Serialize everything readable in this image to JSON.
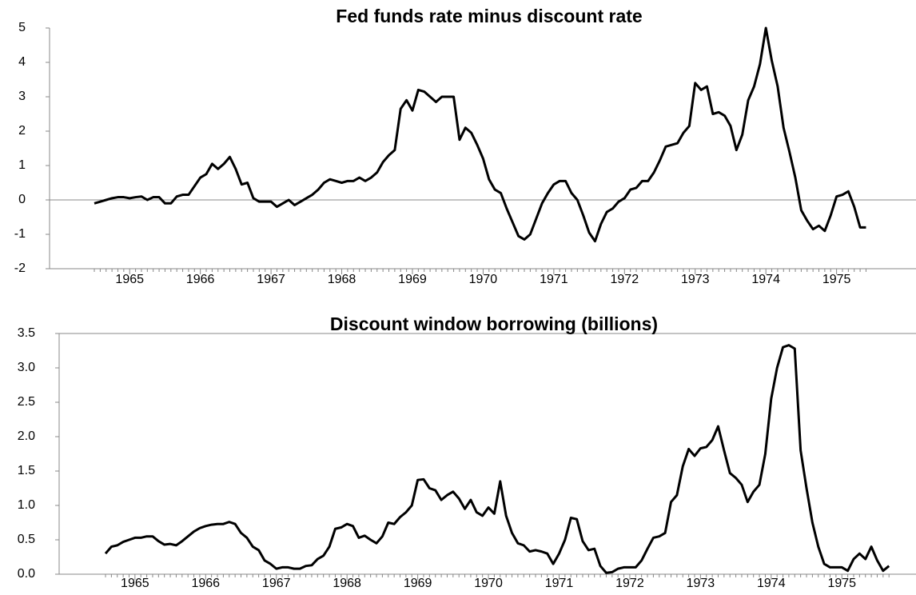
{
  "chart_data": [
    {
      "type": "line",
      "title": "Fed funds rate minus discount rate",
      "color": "#000000",
      "categories": [
        null,
        null,
        null,
        null,
        null,
        null,
        "1965",
        null,
        null,
        null,
        null,
        null,
        null,
        null,
        null,
        null,
        null,
        null,
        "1966",
        null,
        null,
        null,
        null,
        null,
        null,
        null,
        null,
        null,
        null,
        null,
        "1967",
        null,
        null,
        null,
        null,
        null,
        null,
        null,
        null,
        null,
        null,
        null,
        "1968",
        null,
        null,
        null,
        null,
        null,
        null,
        null,
        null,
        null,
        null,
        null,
        "1969",
        null,
        null,
        null,
        null,
        null,
        null,
        null,
        null,
        null,
        null,
        null,
        "1970",
        null,
        null,
        null,
        null,
        null,
        null,
        null,
        null,
        null,
        null,
        null,
        "1971",
        null,
        null,
        null,
        null,
        null,
        null,
        null,
        null,
        null,
        null,
        null,
        "1972",
        null,
        null,
        null,
        null,
        null,
        null,
        null,
        null,
        null,
        null,
        null,
        "1973",
        null,
        null,
        null,
        null,
        null,
        null,
        null,
        null,
        null,
        null,
        null,
        "1974",
        null,
        null,
        null,
        null,
        null,
        null,
        null,
        null,
        null,
        null,
        null,
        "1975",
        null,
        null,
        null,
        null,
        null
      ],
      "values": [
        -0.1,
        -0.05,
        0.0,
        0.05,
        0.08,
        0.08,
        0.05,
        0.08,
        0.1,
        0.0,
        0.08,
        0.08,
        -0.1,
        -0.1,
        0.1,
        0.15,
        0.15,
        0.4,
        0.65,
        0.75,
        1.05,
        0.9,
        1.05,
        1.25,
        0.9,
        0.45,
        0.5,
        0.05,
        -0.05,
        -0.05,
        -0.05,
        -0.2,
        -0.1,
        0.0,
        -0.15,
        -0.05,
        0.05,
        0.15,
        0.3,
        0.5,
        0.6,
        0.55,
        0.5,
        0.55,
        0.55,
        0.65,
        0.55,
        0.65,
        0.8,
        1.1,
        1.3,
        1.45,
        2.65,
        2.9,
        2.6,
        3.2,
        3.15,
        3.0,
        2.85,
        3.0,
        3.0,
        3.0,
        1.75,
        2.1,
        1.95,
        1.6,
        1.2,
        0.6,
        0.3,
        0.2,
        -0.25,
        -0.65,
        -1.05,
        -1.15,
        -1.0,
        -0.55,
        -0.1,
        0.2,
        0.45,
        0.55,
        0.55,
        0.2,
        0.0,
        -0.45,
        -0.95,
        -1.2,
        -0.7,
        -0.35,
        -0.25,
        -0.05,
        0.05,
        0.3,
        0.35,
        0.55,
        0.55,
        0.8,
        1.15,
        1.55,
        1.6,
        1.65,
        1.95,
        2.15,
        3.4,
        3.2,
        3.3,
        2.5,
        2.55,
        2.45,
        2.15,
        1.45,
        1.9,
        2.9,
        3.3,
        3.95,
        5.0,
        4.05,
        3.3,
        2.1,
        1.4,
        0.65,
        -0.3,
        -0.6,
        -0.85,
        -0.75,
        -0.9,
        -0.45,
        0.1,
        0.15,
        0.25,
        -0.2,
        -0.8,
        -0.8
      ],
      "ylim": [
        -2,
        5
      ],
      "yticks": [
        -2,
        -1,
        0,
        1,
        2,
        3,
        4,
        5
      ]
    },
    {
      "type": "line",
      "title": "Discount window borrowing (billions)",
      "color": "#000000",
      "categories": [
        null,
        null,
        null,
        null,
        null,
        "1965",
        null,
        null,
        null,
        null,
        null,
        null,
        null,
        null,
        null,
        null,
        null,
        "1966",
        null,
        null,
        null,
        null,
        null,
        null,
        null,
        null,
        null,
        null,
        null,
        "1967",
        null,
        null,
        null,
        null,
        null,
        null,
        null,
        null,
        null,
        null,
        null,
        "1968",
        null,
        null,
        null,
        null,
        null,
        null,
        null,
        null,
        null,
        null,
        null,
        "1969",
        null,
        null,
        null,
        null,
        null,
        null,
        null,
        null,
        null,
        null,
        null,
        "1970",
        null,
        null,
        null,
        null,
        null,
        null,
        null,
        null,
        null,
        null,
        null,
        "1971",
        null,
        null,
        null,
        null,
        null,
        null,
        null,
        null,
        null,
        null,
        null,
        "1972",
        null,
        null,
        null,
        null,
        null,
        null,
        null,
        null,
        null,
        null,
        null,
        "1973",
        null,
        null,
        null,
        null,
        null,
        null,
        null,
        null,
        null,
        null,
        null,
        "1974",
        null,
        null,
        null,
        null,
        null,
        null,
        null,
        null,
        null,
        null,
        null,
        "1975",
        null,
        null,
        null,
        null,
        null,
        null,
        null,
        null
      ],
      "values": [
        0.3,
        0.4,
        0.42,
        0.47,
        0.5,
        0.53,
        0.53,
        0.55,
        0.55,
        0.48,
        0.43,
        0.44,
        0.42,
        0.48,
        0.55,
        0.62,
        0.67,
        0.7,
        0.72,
        0.73,
        0.73,
        0.76,
        0.73,
        0.6,
        0.53,
        0.4,
        0.35,
        0.2,
        0.15,
        0.08,
        0.1,
        0.1,
        0.08,
        0.08,
        0.12,
        0.13,
        0.22,
        0.27,
        0.4,
        0.66,
        0.68,
        0.73,
        0.7,
        0.53,
        0.56,
        0.5,
        0.45,
        0.55,
        0.75,
        0.73,
        0.83,
        0.9,
        1.0,
        1.37,
        1.38,
        1.25,
        1.22,
        1.08,
        1.15,
        1.2,
        1.1,
        0.95,
        1.08,
        0.9,
        0.85,
        0.97,
        0.88,
        1.35,
        0.85,
        0.6,
        0.45,
        0.42,
        0.33,
        0.35,
        0.33,
        0.3,
        0.15,
        0.3,
        0.5,
        0.82,
        0.8,
        0.48,
        0.35,
        0.37,
        0.12,
        0.02,
        0.03,
        0.08,
        0.1,
        0.1,
        0.1,
        0.2,
        0.37,
        0.53,
        0.55,
        0.6,
        1.05,
        1.15,
        1.57,
        1.82,
        1.72,
        1.83,
        1.85,
        1.95,
        2.15,
        1.8,
        1.47,
        1.4,
        1.3,
        1.05,
        1.2,
        1.3,
        1.75,
        2.55,
        3.0,
        3.3,
        3.33,
        3.28,
        1.8,
        1.25,
        0.75,
        0.4,
        0.15,
        0.1,
        0.1,
        0.1,
        0.05,
        0.22,
        0.3,
        0.22,
        0.4,
        0.2,
        0.05,
        0.12
      ],
      "ylim": [
        0,
        3.5
      ],
      "yticks": [
        {
          "value": 0,
          "label": "0.0"
        },
        0.5,
        {
          "value": 1,
          "label": "1.0"
        },
        1.5,
        {
          "value": 2,
          "label": "2.0"
        },
        2.5,
        {
          "value": 3,
          "label": "3.0"
        },
        3.5
      ]
    }
  ]
}
